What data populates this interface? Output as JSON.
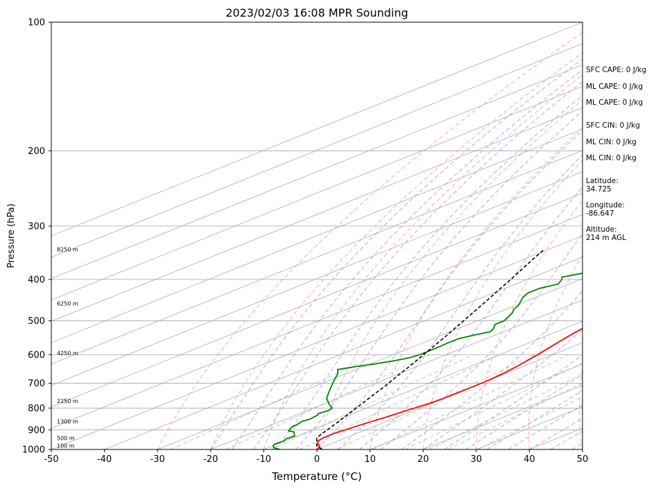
{
  "chart_data": {
    "type": "line",
    "title": "2023/02/03 16:08 MPR Sounding",
    "xlabel": "Temperature (°C)",
    "ylabel": "Pressure (hPa)",
    "xlim": [
      -50,
      50
    ],
    "ylim": [
      1000,
      100
    ],
    "yscale": "log",
    "x_ticks": [
      -50,
      -40,
      -30,
      -20,
      -10,
      0,
      10,
      20,
      30,
      40,
      50
    ],
    "y_ticks": [
      1000,
      900,
      800,
      700,
      600,
      500,
      400,
      300,
      200,
      100
    ],
    "grid": true,
    "height_labels": [
      {
        "label": "100 m",
        "p": 980
      },
      {
        "label": "500 m",
        "p": 940
      },
      {
        "label": "1300 m",
        "p": 860
      },
      {
        "label": "2250 m",
        "p": 770
      },
      {
        "label": "4250 m",
        "p": 595
      },
      {
        "label": "6250 m",
        "p": 455
      },
      {
        "label": "8250 m",
        "p": 340
      }
    ],
    "series": [
      {
        "role": "temperature",
        "color": "#ff0000",
        "points": [
          [
            0,
            1000
          ],
          [
            -0.5,
            990
          ],
          [
            -1.2,
            980
          ],
          [
            -2.5,
            970
          ],
          [
            -3.8,
            955
          ],
          [
            -4.2,
            940
          ],
          [
            -4.3,
            920
          ],
          [
            -3.8,
            900
          ],
          [
            -3.4,
            880
          ],
          [
            -2.8,
            860
          ],
          [
            -2.1,
            840
          ],
          [
            -1.6,
            820
          ],
          [
            -1.0,
            800
          ],
          [
            -0.4,
            780
          ],
          [
            -0.1,
            760
          ],
          [
            0,
            740
          ],
          [
            0,
            720
          ],
          [
            0,
            700
          ],
          [
            -0.2,
            680
          ],
          [
            -0.6,
            660
          ],
          [
            -1.2,
            640
          ],
          [
            -2.0,
            620
          ],
          [
            -2.8,
            600
          ],
          [
            -3.8,
            580
          ],
          [
            -4.8,
            560
          ],
          [
            -5.8,
            540
          ],
          [
            -6.7,
            520
          ],
          [
            -7.7,
            500
          ],
          [
            -8.7,
            480
          ],
          [
            -9.8,
            460
          ],
          [
            -11.0,
            440
          ],
          [
            -12.2,
            420
          ],
          [
            -13.3,
            400
          ],
          [
            -14.5,
            380
          ],
          [
            -15.7,
            360
          ],
          [
            -17.0,
            340
          ],
          [
            -18.3,
            320
          ],
          [
            -20.0,
            300
          ],
          [
            -20.8,
            290
          ],
          [
            -21.4,
            280
          ],
          [
            -21.7,
            270
          ],
          [
            -22.0,
            260
          ]
        ]
      },
      {
        "role": "dewpoint",
        "color": "#008000",
        "points": [
          [
            -7,
            1000
          ],
          [
            -9,
            990
          ],
          [
            -10,
            980
          ],
          [
            -10.5,
            970
          ],
          [
            -10.2,
            955
          ],
          [
            -10.8,
            945
          ],
          [
            -10.5,
            930
          ],
          [
            -11.5,
            920
          ],
          [
            -12.5,
            910
          ],
          [
            -14,
            905
          ],
          [
            -15,
            890
          ],
          [
            -15.5,
            870
          ],
          [
            -16,
            860
          ],
          [
            -15.5,
            850
          ],
          [
            -16,
            830
          ],
          [
            -16.5,
            825
          ],
          [
            -16,
            810
          ],
          [
            -16.5,
            800
          ],
          [
            -18,
            790
          ],
          [
            -20,
            775
          ],
          [
            -22,
            760
          ],
          [
            -24,
            740
          ],
          [
            -26,
            720
          ],
          [
            -28,
            700
          ],
          [
            -30,
            680
          ],
          [
            -31.5,
            665
          ],
          [
            -33.5,
            650
          ],
          [
            -31.5,
            640
          ],
          [
            -29,
            630
          ],
          [
            -27,
            620
          ],
          [
            -25.5,
            610
          ],
          [
            -25,
            600
          ],
          [
            -25,
            590
          ],
          [
            -25,
            580
          ],
          [
            -25.2,
            565
          ],
          [
            -25.2,
            550
          ],
          [
            -24,
            540
          ],
          [
            -22.5,
            530
          ],
          [
            -23.5,
            520
          ],
          [
            -25,
            510
          ],
          [
            -25,
            500
          ],
          [
            -26,
            490
          ],
          [
            -27,
            480
          ],
          [
            -28.5,
            470
          ],
          [
            -29.5,
            460
          ],
          [
            -31,
            450
          ],
          [
            -32.5,
            440
          ],
          [
            -33.5,
            430
          ],
          [
            -33.5,
            420
          ],
          [
            -32,
            410
          ],
          [
            -33.5,
            400
          ],
          [
            -34.5,
            395
          ],
          [
            -32,
            385
          ],
          [
            -32,
            375
          ],
          [
            -33,
            365
          ],
          [
            -35.5,
            355
          ],
          [
            -36.5,
            350
          ],
          [
            -34.5,
            340
          ],
          [
            -36,
            335
          ],
          [
            -40.5,
            330
          ],
          [
            -42,
            320
          ],
          [
            -43.5,
            310
          ],
          [
            -46,
            305
          ],
          [
            -50,
            300
          ],
          [
            -48,
            298
          ],
          [
            -47.5,
            296
          ],
          [
            -49,
            294
          ],
          [
            -45,
            290
          ],
          [
            -42.5,
            289
          ],
          [
            -46,
            288
          ],
          [
            -48,
            287
          ],
          [
            -50,
            286
          ],
          [
            -50,
            268
          ],
          [
            -45,
            264
          ],
          [
            -42,
            262
          ]
        ]
      },
      {
        "role": "parcel",
        "color": "#000000",
        "dashed": true,
        "points": [
          [
            1,
            1000
          ],
          [
            -1.8,
            980
          ],
          [
            -3.6,
            960
          ],
          [
            -5.4,
            940
          ],
          [
            -6.4,
            920
          ],
          [
            -7.2,
            900
          ],
          [
            -8.1,
            880
          ],
          [
            -9,
            860
          ],
          [
            -10,
            840
          ],
          [
            -11,
            820
          ],
          [
            -12,
            800
          ],
          [
            -13,
            780
          ],
          [
            -14.1,
            760
          ],
          [
            -15.2,
            740
          ],
          [
            -16.3,
            720
          ],
          [
            -17.5,
            700
          ],
          [
            -18.8,
            680
          ],
          [
            -20.1,
            660
          ],
          [
            -21.4,
            640
          ],
          [
            -22.8,
            620
          ],
          [
            -24.3,
            600
          ],
          [
            -25.8,
            580
          ],
          [
            -27.4,
            560
          ],
          [
            -29,
            540
          ],
          [
            -30.8,
            520
          ],
          [
            -32.6,
            500
          ],
          [
            -34.5,
            480
          ],
          [
            -36.5,
            460
          ],
          [
            -38.6,
            440
          ],
          [
            -40.8,
            420
          ],
          [
            -43.1,
            400
          ],
          [
            -45.6,
            380
          ],
          [
            -48.2,
            360
          ],
          [
            -50.9,
            340
          ]
        ]
      }
    ]
  },
  "info": {
    "sfc_cape": "SFC CAPE: 0 J/kg",
    "ml_cape_1": "ML CAPE: 0 J/kg",
    "ml_cape_2": "ML CAPE: 0 J/kg",
    "sfc_cin": "SFC CIN: 0 J/kg",
    "ml_cin_1": "ML CIN: 0 J/kg",
    "ml_cin_2": "ML CIN: 0 J/kg",
    "latitude_label": "Latitude:",
    "latitude_value": "34.725",
    "longitude_label": "Longitude:",
    "longitude_value": "-86.647",
    "altitude_label": "Altitude:",
    "altitude_value": "214 m AGL"
  },
  "colors": {
    "isotherm": "#aaaaaa",
    "isobar": "#a6a6a6",
    "dry_adiabat": "#ff9a9a",
    "moist_adiabat": "#9c8cff",
    "mixing_ratio": "#8ed18e"
  }
}
